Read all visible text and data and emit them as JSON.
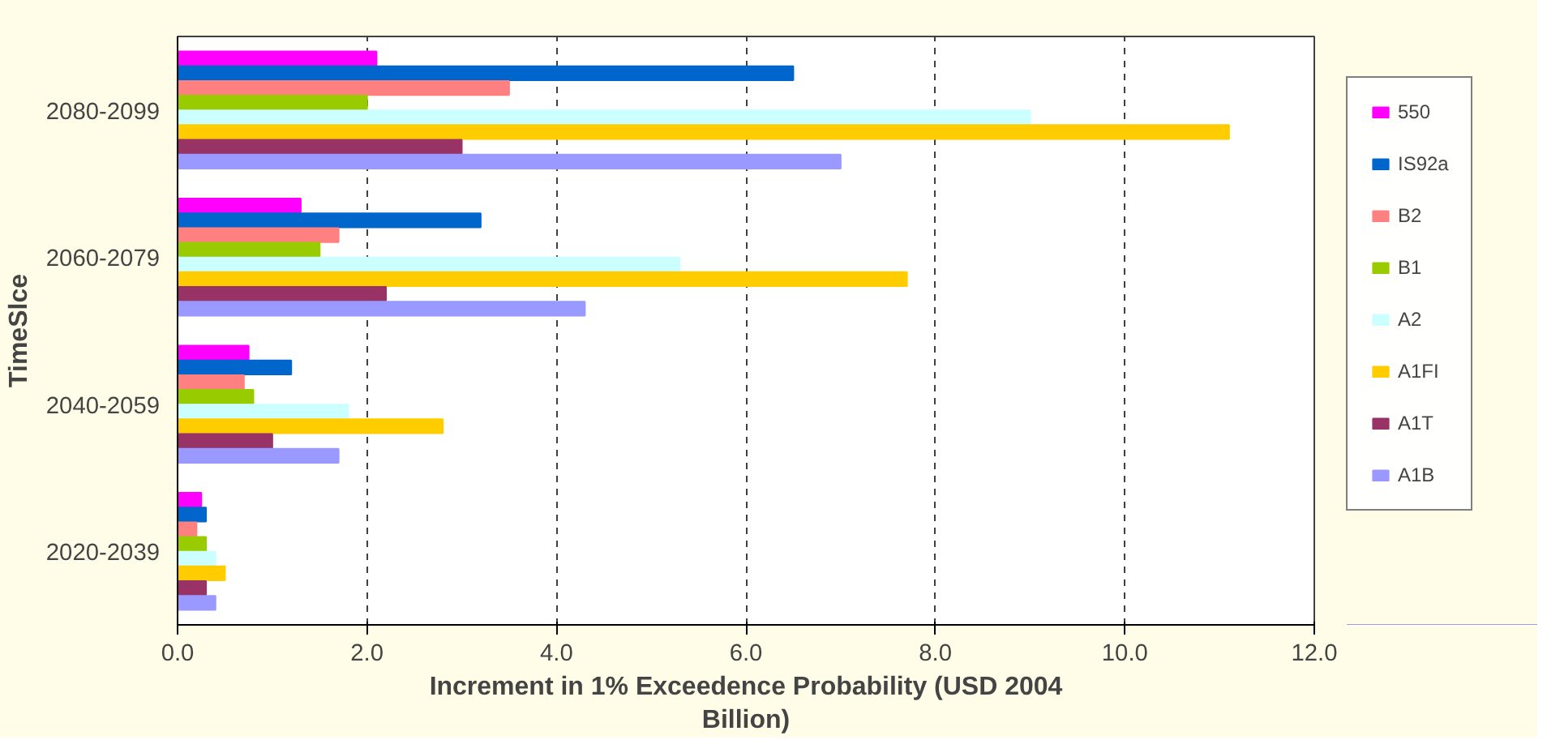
{
  "chart_data": {
    "type": "bar",
    "orientation": "horizontal",
    "ylabel": "TimeSlce",
    "xlabel": "Increment in 1% Exceedence Probability (USD 2004 Billion)",
    "categories": [
      "2080-2099",
      "2060-2079",
      "2040-2059",
      "2020-2039"
    ],
    "xlim": [
      0,
      12
    ],
    "xticks": [
      {
        "value": 0,
        "label": "0.0"
      },
      {
        "value": 2,
        "label": "2.0"
      },
      {
        "value": 4,
        "label": "4.0"
      },
      {
        "value": 6,
        "label": "6.0"
      },
      {
        "value": 8,
        "label": "8.0"
      },
      {
        "value": 10,
        "label": "10.0"
      },
      {
        "value": 12,
        "label": "12.0"
      }
    ],
    "grid": "x",
    "legend": "right",
    "series": [
      {
        "name": "550",
        "color": "#ff00ff",
        "values": [
          2.1,
          1.3,
          0.75,
          0.25
        ]
      },
      {
        "name": "IS92a",
        "color": "#0066cc",
        "values": [
          6.5,
          3.2,
          1.2,
          0.3
        ]
      },
      {
        "name": "B2",
        "color": "#ff8080",
        "values": [
          3.5,
          1.7,
          0.7,
          0.2
        ]
      },
      {
        "name": "B1",
        "color": "#99cc00",
        "values": [
          2.0,
          1.5,
          0.8,
          0.3
        ]
      },
      {
        "name": "A2",
        "color": "#ccffff",
        "values": [
          9.0,
          5.3,
          1.8,
          0.4
        ]
      },
      {
        "name": "A1FI",
        "color": "#ffcc00",
        "values": [
          11.1,
          7.7,
          2.8,
          0.5
        ]
      },
      {
        "name": "A1T",
        "color": "#993366",
        "values": [
          3.0,
          2.2,
          1.0,
          0.3
        ]
      },
      {
        "name": "A1B",
        "color": "#9999ff",
        "values": [
          7.0,
          4.3,
          1.7,
          0.4
        ]
      }
    ]
  }
}
